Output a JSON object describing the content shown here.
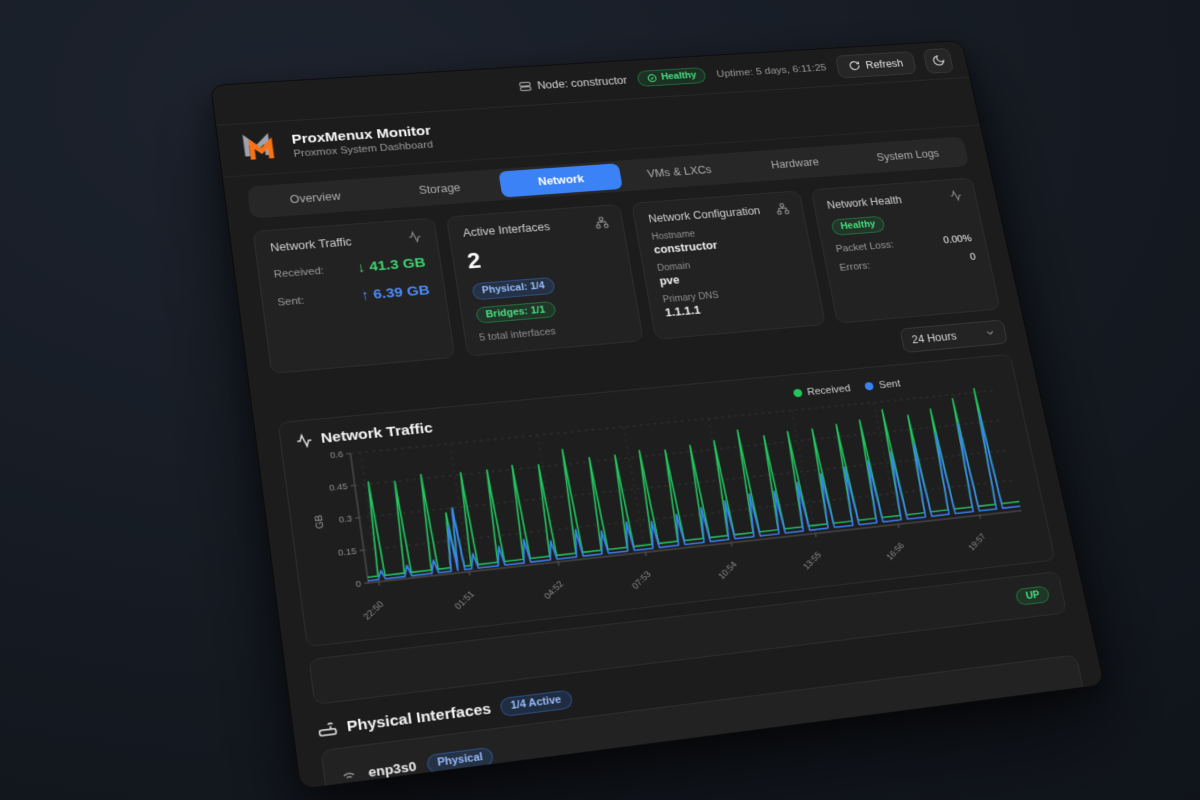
{
  "topbar": {
    "node_label": "Node: constructor",
    "health_badge": "Healthy",
    "uptime": "Uptime: 5 days, 6:11:25",
    "refresh_label": "Refresh"
  },
  "header": {
    "title": "ProxMenux Monitor",
    "subtitle": "Proxmox System Dashboard"
  },
  "tabs": [
    {
      "label": "Overview",
      "active": false
    },
    {
      "label": "Storage",
      "active": false
    },
    {
      "label": "Network",
      "active": true
    },
    {
      "label": "VMs & LXCs",
      "active": false
    },
    {
      "label": "Hardware",
      "active": false
    },
    {
      "label": "System Logs",
      "active": false
    }
  ],
  "cards": {
    "traffic": {
      "title": "Network Traffic",
      "received_label": "Received:",
      "received_value": "↓ 41.3 GB",
      "sent_label": "Sent:",
      "sent_value": "↑ 6.39 GB"
    },
    "interfaces": {
      "title": "Active Interfaces",
      "count": "2",
      "physical_badge": "Physical: 1/4",
      "bridges_badge": "Bridges: 1/1",
      "total": "5 total interfaces"
    },
    "config": {
      "title": "Network Configuration",
      "hostname_label": "Hostname",
      "hostname": "constructor",
      "domain_label": "Domain",
      "domain": "pve",
      "dns_label": "Primary DNS",
      "dns": "1.1.1.1"
    },
    "health": {
      "title": "Network Health",
      "status": "Healthy",
      "packet_loss_label": "Packet Loss:",
      "packet_loss": "0.00%",
      "errors_label": "Errors:",
      "errors": "0"
    }
  },
  "time_range": {
    "selected": "24 Hours"
  },
  "chart_data": {
    "type": "line",
    "title": "Network Traffic",
    "ylabel": "GB",
    "ylim": [
      0,
      0.6
    ],
    "yticks": [
      0,
      0.15,
      0.3,
      0.45,
      0.6
    ],
    "xticks": [
      "22:50",
      "01:51",
      "04:52",
      "07:53",
      "10:54",
      "13:55",
      "16:56",
      "19:57"
    ],
    "legend": [
      {
        "name": "Received",
        "color": "#22c55e"
      },
      {
        "name": "Sent",
        "color": "#3b82f6"
      }
    ],
    "baseline": {
      "received": 0.025,
      "sent": 0.01
    },
    "spikes": [
      [
        0.02,
        0.46,
        0.05
      ],
      [
        0.058,
        0.45,
        0.06
      ],
      [
        0.097,
        0.47,
        0.07
      ],
      [
        0.125,
        0.28,
        0.22
      ],
      [
        0.135,
        0.3,
        0.3
      ],
      [
        0.155,
        0.46,
        0.08
      ],
      [
        0.194,
        0.46,
        0.1
      ],
      [
        0.232,
        0.47,
        0.12
      ],
      [
        0.271,
        0.46,
        0.1
      ],
      [
        0.31,
        0.52,
        0.14
      ],
      [
        0.348,
        0.47,
        0.12
      ],
      [
        0.387,
        0.47,
        0.15
      ],
      [
        0.425,
        0.48,
        0.14
      ],
      [
        0.464,
        0.47,
        0.16
      ],
      [
        0.503,
        0.48,
        0.18
      ],
      [
        0.541,
        0.49,
        0.2
      ],
      [
        0.58,
        0.53,
        0.22
      ],
      [
        0.619,
        0.49,
        0.22
      ],
      [
        0.657,
        0.5,
        0.25
      ],
      [
        0.696,
        0.5,
        0.28
      ],
      [
        0.735,
        0.51,
        0.3
      ],
      [
        0.773,
        0.52,
        0.32
      ],
      [
        0.812,
        0.56,
        0.35
      ],
      [
        0.851,
        0.52,
        0.38
      ],
      [
        0.889,
        0.54,
        0.42
      ],
      [
        0.928,
        0.58,
        0.46
      ],
      [
        0.966,
        0.62,
        0.5
      ]
    ]
  },
  "status_row": {
    "badge": "UP"
  },
  "physical_interfaces": {
    "title": "Physical Interfaces",
    "active_badge": "1/4 Active",
    "rows": [
      {
        "name": "enp3s0",
        "badge": "Physical"
      }
    ]
  },
  "colors": {
    "accent_blue": "#3b82f6",
    "green": "#22c55e",
    "orange": "#f97316"
  }
}
